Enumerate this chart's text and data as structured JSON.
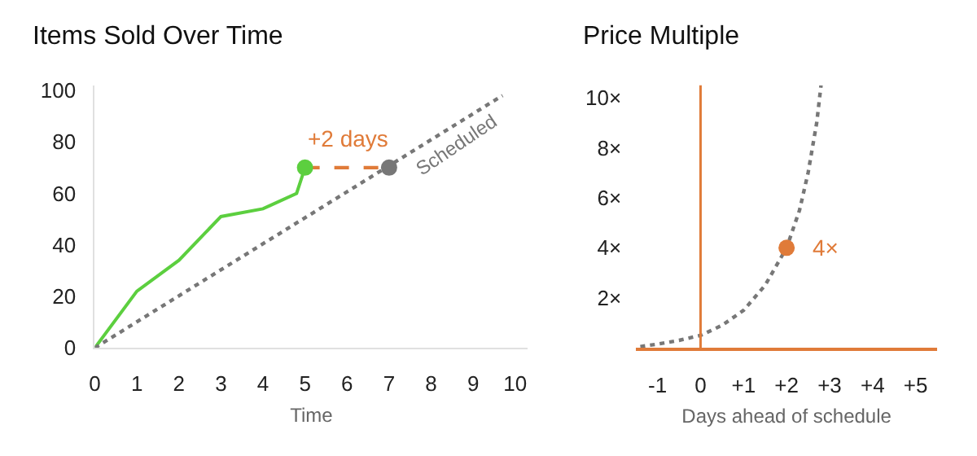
{
  "chart_data": [
    {
      "type": "line",
      "title": "Items Sold Over Time",
      "xlabel": "Time",
      "x": [
        0,
        1,
        2,
        3,
        4,
        4.8,
        5
      ],
      "series": [
        {
          "color": "#5ccf3f",
          "values": [
            0,
            22,
            34,
            51,
            54,
            60,
            70
          ],
          "marker": "none",
          "line_style": "solid"
        },
        {
          "name": "Scheduled",
          "color": "#777777",
          "x": [
            0,
            9.7
          ],
          "values": [
            0,
            98
          ],
          "marker": "none",
          "line_style": "dotted"
        },
        {
          "type": "line",
          "color": "#e07b39",
          "x": [
            5,
            7
          ],
          "values": [
            70,
            70
          ],
          "marker": "none",
          "line_style": "dashed"
        },
        {
          "type": "scatter",
          "color": "#5ccf3f",
          "x": [
            5
          ],
          "values": [
            70
          ],
          "marker": "circle"
        },
        {
          "type": "scatter",
          "color": "#777777",
          "x": [
            7
          ],
          "values": [
            70
          ],
          "marker": "circle"
        }
      ],
      "annotations": [
        {
          "text": "+2 days",
          "x": 6,
          "y": 70
        }
      ],
      "xlim": [
        0,
        10.3
      ],
      "ylim": [
        0,
        102
      ],
      "xticks": [
        0,
        1,
        2,
        3,
        4,
        5,
        6,
        7,
        8,
        9,
        10
      ],
      "yticks": [
        0,
        20,
        40,
        60,
        80,
        100
      ]
    },
    {
      "type": "line",
      "title": "Price Multiple",
      "xlabel": "Days ahead of schedule",
      "x": [
        -1.4,
        -1,
        -0.5,
        0,
        0.5,
        1,
        1.5,
        2,
        2.3,
        2.5,
        2.7,
        2.8
      ],
      "series": [
        {
          "color": "#777777",
          "values": [
            0.05,
            0.15,
            0.3,
            0.5,
            0.9,
            1.5,
            2.5,
            4,
            5.5,
            7,
            9,
            10.5
          ],
          "marker": "none",
          "line_style": "dotted"
        },
        {
          "type": "scatter",
          "color": "#e07b39",
          "x": [
            2
          ],
          "values": [
            4
          ],
          "marker": "circle"
        }
      ],
      "annotations": [
        {
          "text": "4×",
          "x": 2,
          "y": 4
        }
      ],
      "ref_lines": [
        {
          "axis": "x",
          "value": 0,
          "color": "#e07b39"
        }
      ],
      "xlim": [
        -1.5,
        5.5
      ],
      "ylim": [
        0,
        10.5
      ],
      "xticks": [
        -1,
        0,
        {
          "value": 1,
          "label": "+1"
        },
        {
          "value": 2,
          "label": "+2"
        },
        {
          "value": 3,
          "label": "+3"
        },
        {
          "value": 4,
          "label": "+4"
        },
        {
          "value": 5,
          "label": "+5"
        }
      ],
      "yticks": [
        {
          "value": 2,
          "label": "2×"
        },
        {
          "value": 4,
          "label": "4×"
        },
        {
          "value": 6,
          "label": "6×"
        },
        {
          "value": 8,
          "label": "8×"
        },
        {
          "value": 10,
          "label": "10×"
        }
      ]
    }
  ]
}
